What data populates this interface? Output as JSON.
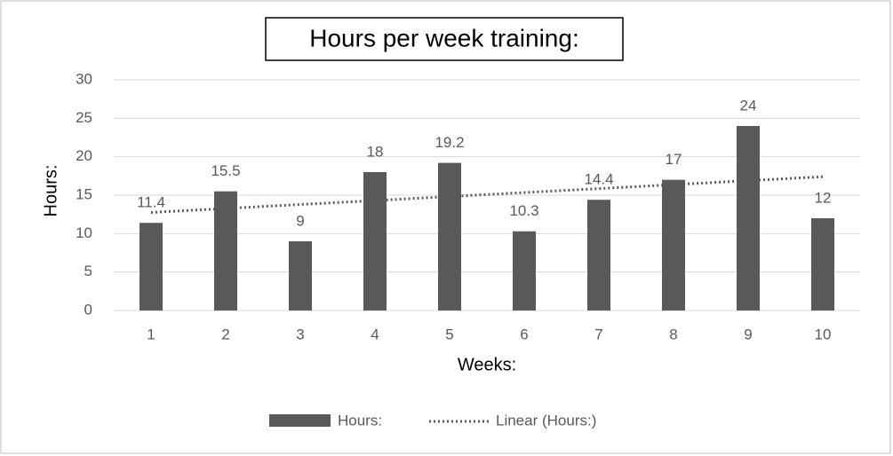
{
  "chart_data": {
    "type": "bar",
    "title": "Hours per week training:",
    "x_label": "Weeks:",
    "y_label": "Hours:",
    "categories": [
      "1",
      "2",
      "3",
      "4",
      "5",
      "6",
      "7",
      "8",
      "9",
      "10"
    ],
    "series": [
      {
        "name": "Hours:",
        "color": "#595959",
        "values": [
          11.4,
          15.5,
          9,
          18,
          19.2,
          10.3,
          14.4,
          17,
          24,
          12
        ]
      }
    ],
    "trendline": {
      "name": "Linear (Hours:)",
      "kind": "linear",
      "color": "#595959"
    },
    "ylim": [
      0,
      30
    ],
    "yticks": [
      0,
      5,
      10,
      15,
      20,
      25,
      30
    ],
    "grid": true,
    "legend": "bottom"
  }
}
